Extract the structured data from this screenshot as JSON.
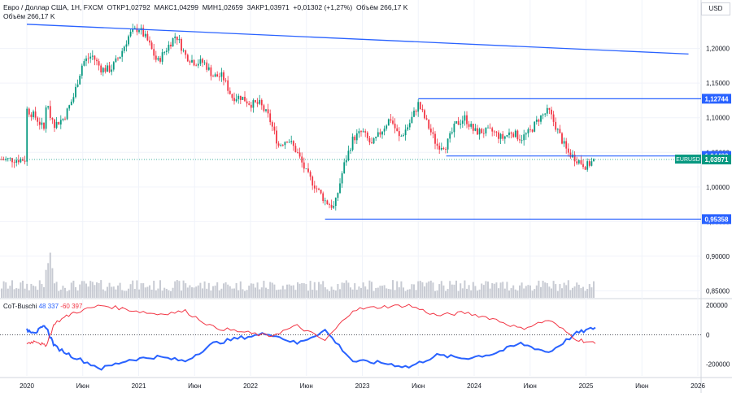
{
  "header": {
    "title": "Евро / Доллар США, 1Н, FXCM",
    "open_label": "ОТКР",
    "open": "1,02792",
    "high_label": "МАКС",
    "high": "1,04299",
    "low_label": "МИН",
    "low": "1,02659",
    "close_label": "ЗАКР",
    "close": "1,03971",
    "change": "+0,01302 (+1,27%)",
    "volume_label": "Объём",
    "volume": "266,17 K"
  },
  "indicator": {
    "name": "CoT-Buschi",
    "value_blue": "48 337",
    "value_red": "-60 397"
  },
  "currency": "USD",
  "symbol_tag": "EURUSD",
  "colors": {
    "up": "#089981",
    "down": "#f23645",
    "line": "#2962ff",
    "volume": "#c8cbd3",
    "cot_red": "#f23645",
    "cot_blue": "#2962ff"
  },
  "chart_data": [
    {
      "type": "candlestick",
      "title": "Евро / Доллар США, 1Н, FXCM",
      "y_ticks": [
        "1,20000",
        "1,15000",
        "1,10000",
        "1,05000",
        "1,00000",
        "0,95000",
        "0,90000",
        "0,85000"
      ],
      "ylim": [
        0.84,
        1.27
      ],
      "x_ticks": [
        "2020",
        "Июн",
        "2021",
        "Июн",
        "2022",
        "Июн",
        "2023",
        "Июн",
        "2024",
        "Июн",
        "2025",
        "Июн",
        "2026"
      ],
      "price_labels": [
        {
          "label": "1,12744",
          "value": 1.12744,
          "style": "blue"
        },
        {
          "label": "1,04482",
          "value": 1.04482,
          "style": "blue"
        },
        {
          "label": "1,03971",
          "value": 1.03971,
          "style": "teal"
        },
        {
          "label": "0,95358",
          "value": 0.95358,
          "style": "blue"
        }
      ],
      "levels": [
        {
          "value": 1.12744,
          "from": "2023-07",
          "to": "2026-06"
        },
        {
          "value": 1.04482,
          "from": "2023-10",
          "to": "2026-06"
        },
        {
          "value": 0.95358,
          "from": "2022-09",
          "to": "2026-06"
        }
      ],
      "trendline": {
        "from": {
          "x": "2020-01",
          "y": 1.235
        },
        "to": {
          "x": "2025-12",
          "y": 1.192
        }
      },
      "price_path": [
        [
          "2020-01",
          1.112
        ],
        [
          "2020-02",
          1.1
        ],
        [
          "2020-03",
          1.08
        ],
        [
          "2020-03",
          1.12
        ],
        [
          "2020-04",
          1.09
        ],
        [
          "2020-05",
          1.1
        ],
        [
          "2020-06",
          1.13
        ],
        [
          "2020-07",
          1.18
        ],
        [
          "2020-08",
          1.19
        ],
        [
          "2020-09",
          1.17
        ],
        [
          "2020-10",
          1.17
        ],
        [
          "2020-11",
          1.19
        ],
        [
          "2020-12",
          1.22
        ],
        [
          "2021-01",
          1.23
        ],
        [
          "2021-02",
          1.21
        ],
        [
          "2021-03",
          1.18
        ],
        [
          "2021-04",
          1.2
        ],
        [
          "2021-05",
          1.22
        ],
        [
          "2021-06",
          1.19
        ],
        [
          "2021-07",
          1.18
        ],
        [
          "2021-08",
          1.18
        ],
        [
          "2021-09",
          1.16
        ],
        [
          "2021-10",
          1.16
        ],
        [
          "2021-11",
          1.13
        ],
        [
          "2021-12",
          1.13
        ],
        [
          "2022-01",
          1.12
        ],
        [
          "2022-02",
          1.12
        ],
        [
          "2022-03",
          1.1
        ],
        [
          "2022-04",
          1.06
        ],
        [
          "2022-05",
          1.07
        ],
        [
          "2022-06",
          1.05
        ],
        [
          "2022-07",
          1.02
        ],
        [
          "2022-08",
          1.0
        ],
        [
          "2022-09",
          0.98
        ],
        [
          "2022-10",
          0.97
        ],
        [
          "2022-11",
          1.03
        ],
        [
          "2022-12",
          1.07
        ],
        [
          "2023-01",
          1.08
        ],
        [
          "2023-02",
          1.06
        ],
        [
          "2023-03",
          1.08
        ],
        [
          "2023-04",
          1.1
        ],
        [
          "2023-05",
          1.07
        ],
        [
          "2023-06",
          1.09
        ],
        [
          "2023-07",
          1.12
        ],
        [
          "2023-08",
          1.09
        ],
        [
          "2023-09",
          1.06
        ],
        [
          "2023-10",
          1.06
        ],
        [
          "2023-11",
          1.09
        ],
        [
          "2023-12",
          1.1
        ],
        [
          "2024-01",
          1.08
        ],
        [
          "2024-02",
          1.08
        ],
        [
          "2024-03",
          1.08
        ],
        [
          "2024-04",
          1.07
        ],
        [
          "2024-05",
          1.08
        ],
        [
          "2024-06",
          1.07
        ],
        [
          "2024-07",
          1.08
        ],
        [
          "2024-08",
          1.1
        ],
        [
          "2024-09",
          1.11
        ],
        [
          "2024-10",
          1.08
        ],
        [
          "2024-11",
          1.05
        ],
        [
          "2024-12",
          1.04
        ],
        [
          "2025-01",
          1.03
        ],
        [
          "2025-02",
          1.0397
        ]
      ]
    },
    {
      "type": "line",
      "title": "CoT-Buschi",
      "y_ticks": [
        "200000",
        "0",
        "-200000"
      ],
      "ylim": [
        -280000,
        240000
      ],
      "series": [
        {
          "name": "CoT-Buschi",
          "color": "blue",
          "values": [
            [
              "2020-01",
              30000
            ],
            [
              "2020-02",
              20000
            ],
            [
              "2020-03",
              60000
            ],
            [
              "2020-04",
              -80000
            ],
            [
              "2020-06",
              -150000
            ],
            [
              "2020-09",
              -230000
            ],
            [
              "2020-12",
              -170000
            ],
            [
              "2021-03",
              -150000
            ],
            [
              "2021-06",
              -180000
            ],
            [
              "2021-09",
              -60000
            ],
            [
              "2021-12",
              -20000
            ],
            [
              "2022-03",
              10000
            ],
            [
              "2022-06",
              -60000
            ],
            [
              "2022-09",
              30000
            ],
            [
              "2022-12",
              -180000
            ],
            [
              "2023-03",
              -190000
            ],
            [
              "2023-06",
              -220000
            ],
            [
              "2023-09",
              -140000
            ],
            [
              "2023-12",
              -160000
            ],
            [
              "2024-03",
              -130000
            ],
            [
              "2024-06",
              -60000
            ],
            [
              "2024-09",
              -120000
            ],
            [
              "2024-12",
              10000
            ],
            [
              "2025-02",
              48337
            ]
          ]
        },
        {
          "name": "CoT-Buschi",
          "color": "red",
          "values": [
            [
              "2020-01",
              -60000
            ],
            [
              "2020-02",
              -40000
            ],
            [
              "2020-03",
              -80000
            ],
            [
              "2020-04",
              80000
            ],
            [
              "2020-06",
              150000
            ],
            [
              "2020-09",
              200000
            ],
            [
              "2020-12",
              170000
            ],
            [
              "2021-03",
              140000
            ],
            [
              "2021-06",
              160000
            ],
            [
              "2021-09",
              50000
            ],
            [
              "2021-12",
              20000
            ],
            [
              "2022-03",
              -10000
            ],
            [
              "2022-06",
              60000
            ],
            [
              "2022-09",
              -40000
            ],
            [
              "2022-12",
              170000
            ],
            [
              "2023-03",
              190000
            ],
            [
              "2023-06",
              200000
            ],
            [
              "2023-09",
              130000
            ],
            [
              "2023-12",
              150000
            ],
            [
              "2024-03",
              110000
            ],
            [
              "2024-06",
              40000
            ],
            [
              "2024-09",
              100000
            ],
            [
              "2024-12",
              -30000
            ],
            [
              "2025-02",
              -60397
            ]
          ]
        }
      ]
    }
  ]
}
